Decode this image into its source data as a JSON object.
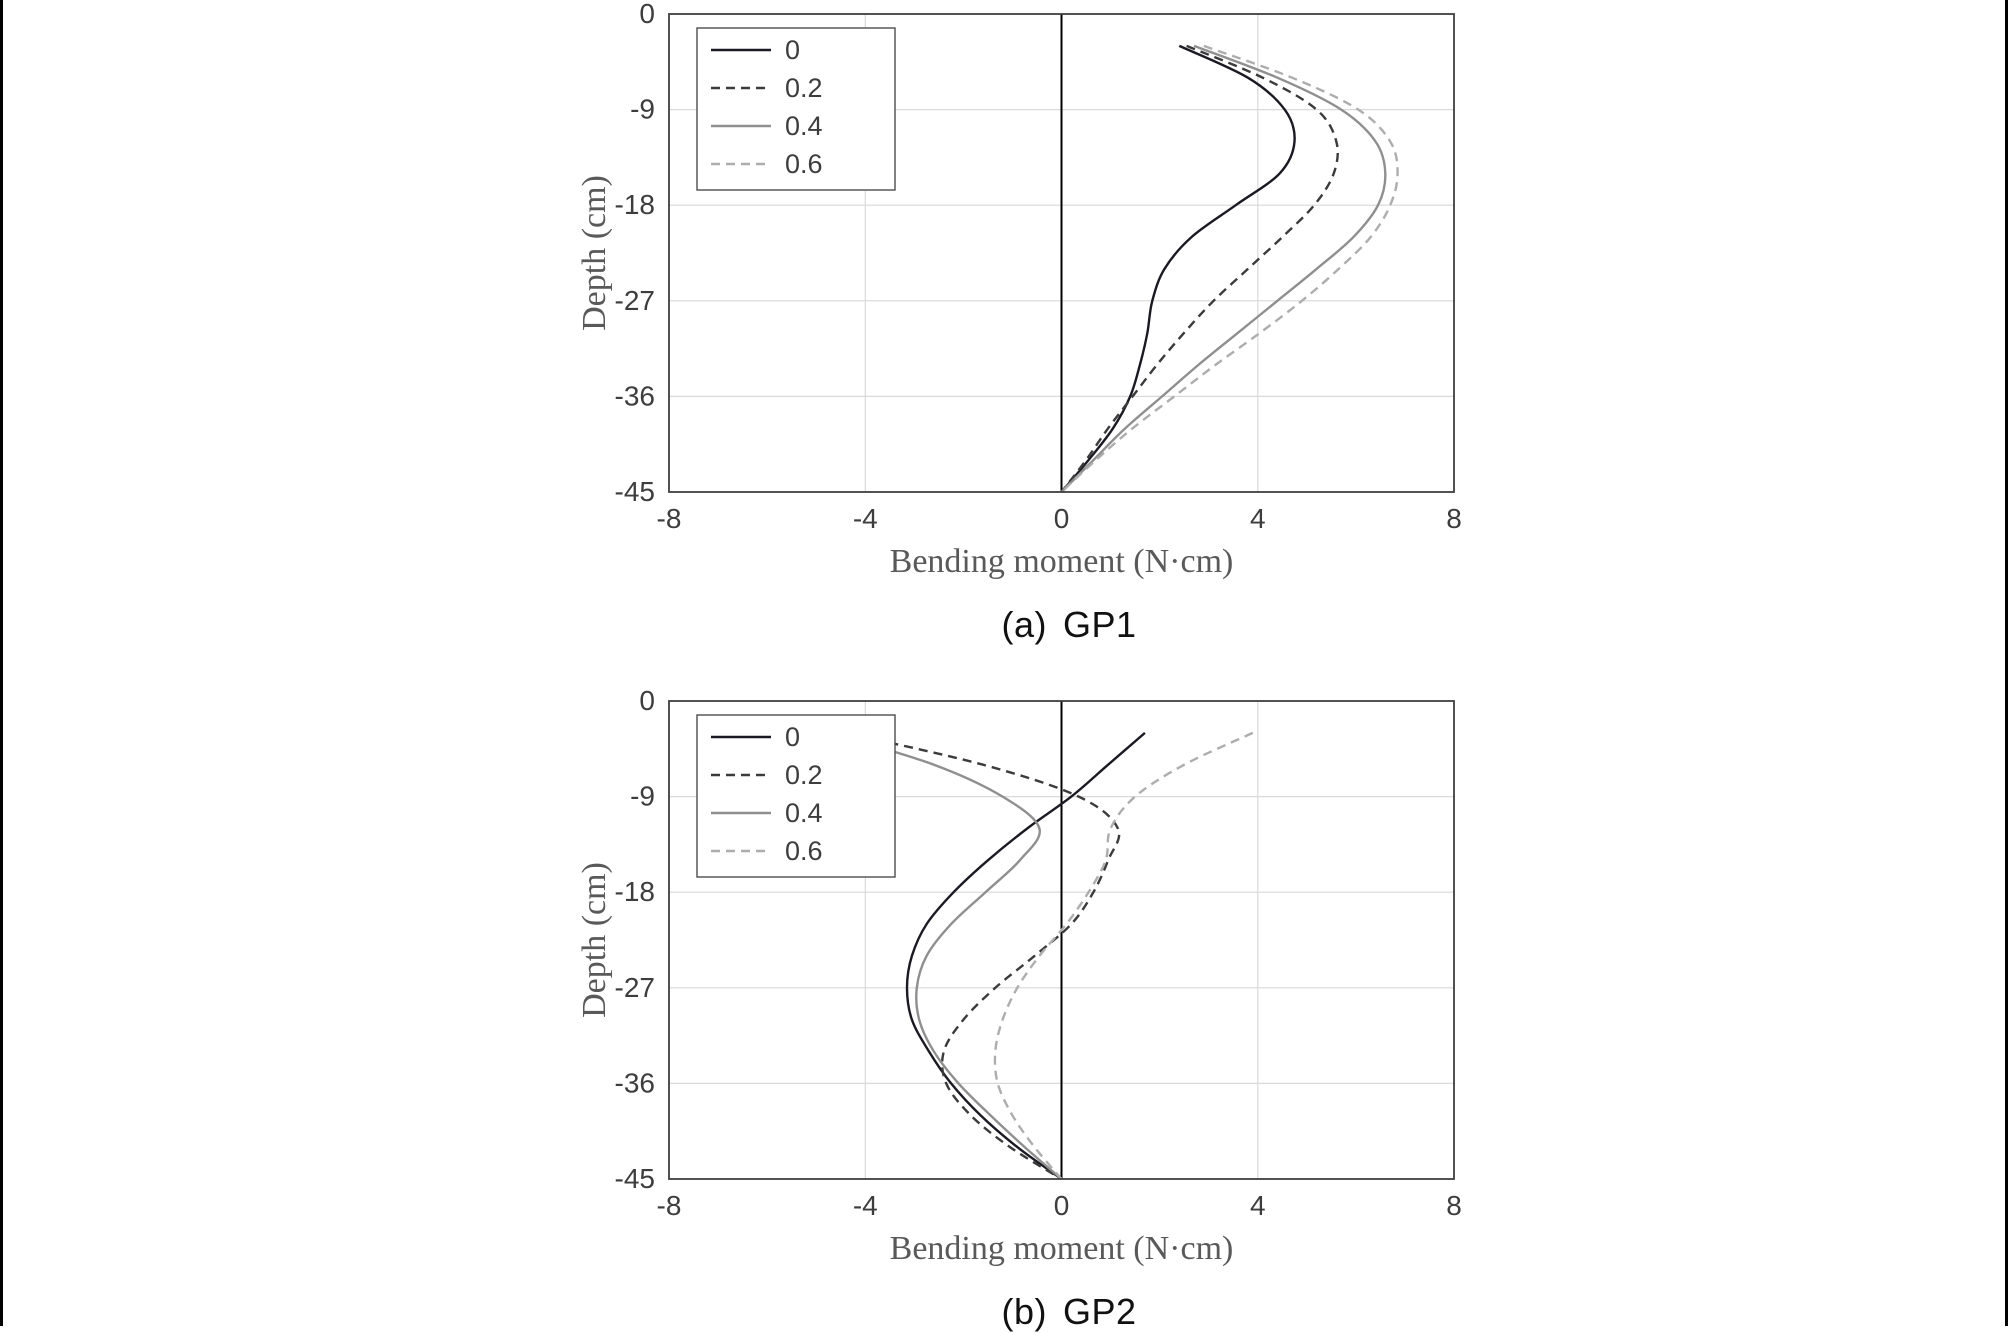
{
  "page": {
    "background": "#ffffff",
    "edge_bar_color": "#000000"
  },
  "style": {
    "grid_color": "#d9d9d9",
    "border_color": "#3f3f3f",
    "zero_line_color": "#000000",
    "tick_color": "#3d3d3d",
    "axis_title_color": "#595959",
    "legend_border_color": "#4d4d4d",
    "legend_background": "#ffffff"
  },
  "charts": [
    {
      "id": "gp1",
      "caption_prefix": "(a)",
      "caption_label": "GP1",
      "chart_data": {
        "type": "line",
        "xlabel": "Bending moment (N·cm)",
        "ylabel": "Depth (cm)",
        "xlim": [
          -8,
          8
        ],
        "ylim": [
          -45,
          0
        ],
        "xticks": [
          -8,
          -4,
          0,
          4,
          8
        ],
        "yticks": [
          0,
          -9,
          -18,
          -27,
          -36,
          -45
        ],
        "grid": true,
        "legend_position": "top-left",
        "depths": [
          -3,
          -6,
          -9,
          -12,
          -15,
          -18,
          -21,
          -24,
          -27,
          -30,
          -33,
          -36,
          -39,
          -42,
          -45
        ],
        "series": [
          {
            "name": "0",
            "color": "#1a1a22",
            "dashed": false,
            "values": [
              2.4,
              3.8,
              4.55,
              4.75,
              4.45,
              3.55,
              2.65,
              2.1,
              1.85,
              1.75,
              1.6,
              1.4,
              1.05,
              0.55,
              0
            ]
          },
          {
            "name": "0.2",
            "color": "#3b3b3b",
            "dashed": true,
            "values": [
              2.55,
              4.1,
              5.2,
              5.6,
              5.55,
              5.15,
              4.5,
              3.8,
              3.1,
              2.5,
              1.95,
              1.45,
              0.95,
              0.5,
              0
            ]
          },
          {
            "name": "0.4",
            "color": "#8f8f8f",
            "dashed": false,
            "values": [
              2.7,
              4.4,
              5.7,
              6.4,
              6.6,
              6.45,
              5.95,
              5.2,
              4.4,
              3.6,
              2.8,
              2.05,
              1.3,
              0.65,
              0
            ]
          },
          {
            "name": "0.6",
            "color": "#adadad",
            "dashed": true,
            "values": [
              2.9,
              4.7,
              6.05,
              6.7,
              6.85,
              6.7,
              6.3,
              5.65,
              4.9,
              4.05,
              3.15,
              2.3,
              1.45,
              0.7,
              0
            ]
          }
        ]
      }
    },
    {
      "id": "gp2",
      "caption_prefix": "(b)",
      "caption_label": "GP2",
      "chart_data": {
        "type": "line",
        "xlabel": "Bending moment (N·cm)",
        "ylabel": "Depth (cm)",
        "xlim": [
          -8,
          8
        ],
        "ylim": [
          -45,
          0
        ],
        "xticks": [
          -8,
          -4,
          0,
          4,
          8
        ],
        "yticks": [
          0,
          -9,
          -18,
          -27,
          -36,
          -45
        ],
        "grid": true,
        "legend_position": "top-left",
        "depths": [
          -3,
          -6,
          -9,
          -12,
          -15,
          -18,
          -21,
          -24,
          -27,
          -30,
          -33,
          -36,
          -39,
          -42,
          -45
        ],
        "series": [
          {
            "name": "0",
            "color": "#1a1a22",
            "dashed": false,
            "values": [
              1.7,
              0.95,
              0.2,
              -0.7,
              -1.5,
              -2.2,
              -2.75,
              -3.05,
              -3.15,
              -3.05,
              -2.7,
              -2.25,
              -1.65,
              -0.9,
              0
            ]
          },
          {
            "name": "0.2",
            "color": "#3b3b3b",
            "dashed": true,
            "values": [
              -4.4,
              -1.6,
              0.35,
              1.15,
              0.95,
              0.65,
              0.2,
              -0.55,
              -1.35,
              -2.0,
              -2.4,
              -2.35,
              -1.85,
              -1.05,
              0
            ]
          },
          {
            "name": "0.4",
            "color": "#8f8f8f",
            "dashed": false,
            "values": [
              -4.7,
              -2.6,
              -1.2,
              -0.45,
              -0.85,
              -1.55,
              -2.25,
              -2.75,
              -2.95,
              -2.9,
              -2.6,
              -2.1,
              -1.45,
              -0.75,
              0
            ]
          },
          {
            "name": "0.6",
            "color": "#adadad",
            "dashed": true,
            "values": [
              3.9,
              2.5,
              1.5,
              1.0,
              0.9,
              0.55,
              0.1,
              -0.45,
              -0.9,
              -1.2,
              -1.35,
              -1.3,
              -1.0,
              -0.55,
              0
            ]
          }
        ]
      }
    }
  ]
}
